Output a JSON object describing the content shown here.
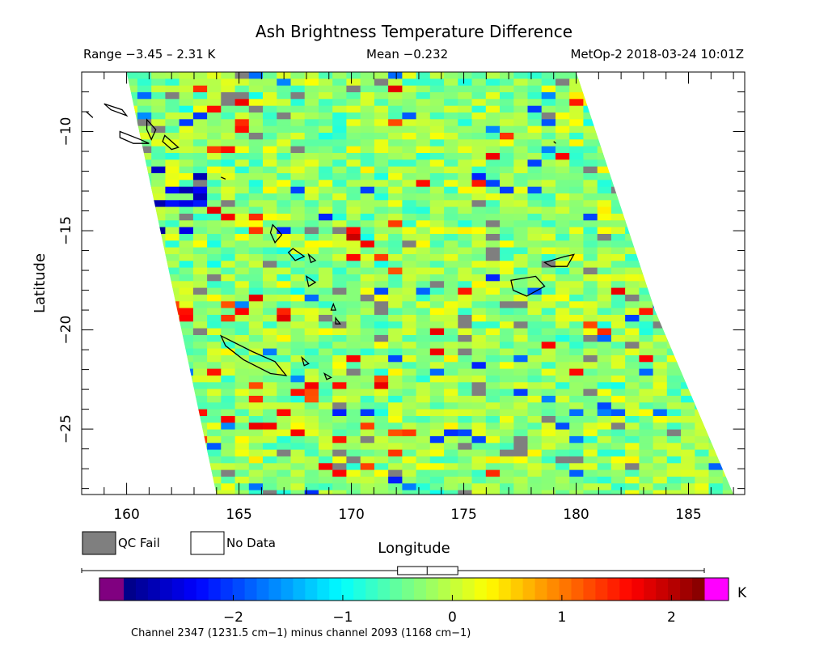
{
  "chart_data": {
    "type": "heatmap",
    "title": "Ash Brightness Temperature Difference",
    "subtitle": {
      "range": "Range −3.45 – 2.31 K",
      "mean": "Mean −0.232",
      "satellite_time": "MetOp-2 2018-03-24 10:01Z"
    },
    "xlabel": "Longitude",
    "ylabel": "Latitude",
    "xlim": [
      158,
      187.5
    ],
    "ylim": [
      -28.3,
      -7
    ],
    "x_ticks": [
      160,
      165,
      170,
      175,
      180,
      185
    ],
    "x_tick_labels": [
      "160",
      "165",
      "170",
      "175",
      "180",
      "185"
    ],
    "y_ticks": [
      -10,
      -15,
      -20,
      -25
    ],
    "y_tick_labels": [
      "−10",
      "−15",
      "−20",
      "−25"
    ],
    "swath": {
      "top_left_lon": 160.0,
      "top_right_lon": 180.0,
      "bottom_left_lon": 164.0,
      "bottom_right_lon": 187.0
    },
    "field": {
      "min": -3.45,
      "max": 2.31,
      "mean": -0.232,
      "distribution": "mostly -0.8 to 0.4 K, with scattered QC-fail pixels, a cluster of strong negative values (-2 to -3 K) on the western edge near 161-163E, 12-15S, and positive values (1.5-2.3 K) near 168-169E, 15-16S"
    },
    "legend": [
      {
        "label": "QC Fail",
        "color": "#7f7f7f"
      },
      {
        "label": "No Data",
        "color": "#ffffff"
      }
    ],
    "colorbar": {
      "min": -3.0,
      "max": 2.3,
      "ticks": [
        -2,
        -1,
        0,
        1,
        2
      ],
      "tick_labels": [
        "−2",
        "−1",
        "0",
        "1",
        "2"
      ],
      "unit": "K",
      "under_color": "#800080",
      "over_color": "#ff00ff",
      "boxplot": {
        "q1": -0.5,
        "median": -0.23,
        "q3": 0.05,
        "whisker_low": -3.45,
        "whisker_high": 2.31
      }
    },
    "footnote": "Channel 2347 (1231.5 cm−1) minus channel 2093 (1168 cm−1)"
  }
}
